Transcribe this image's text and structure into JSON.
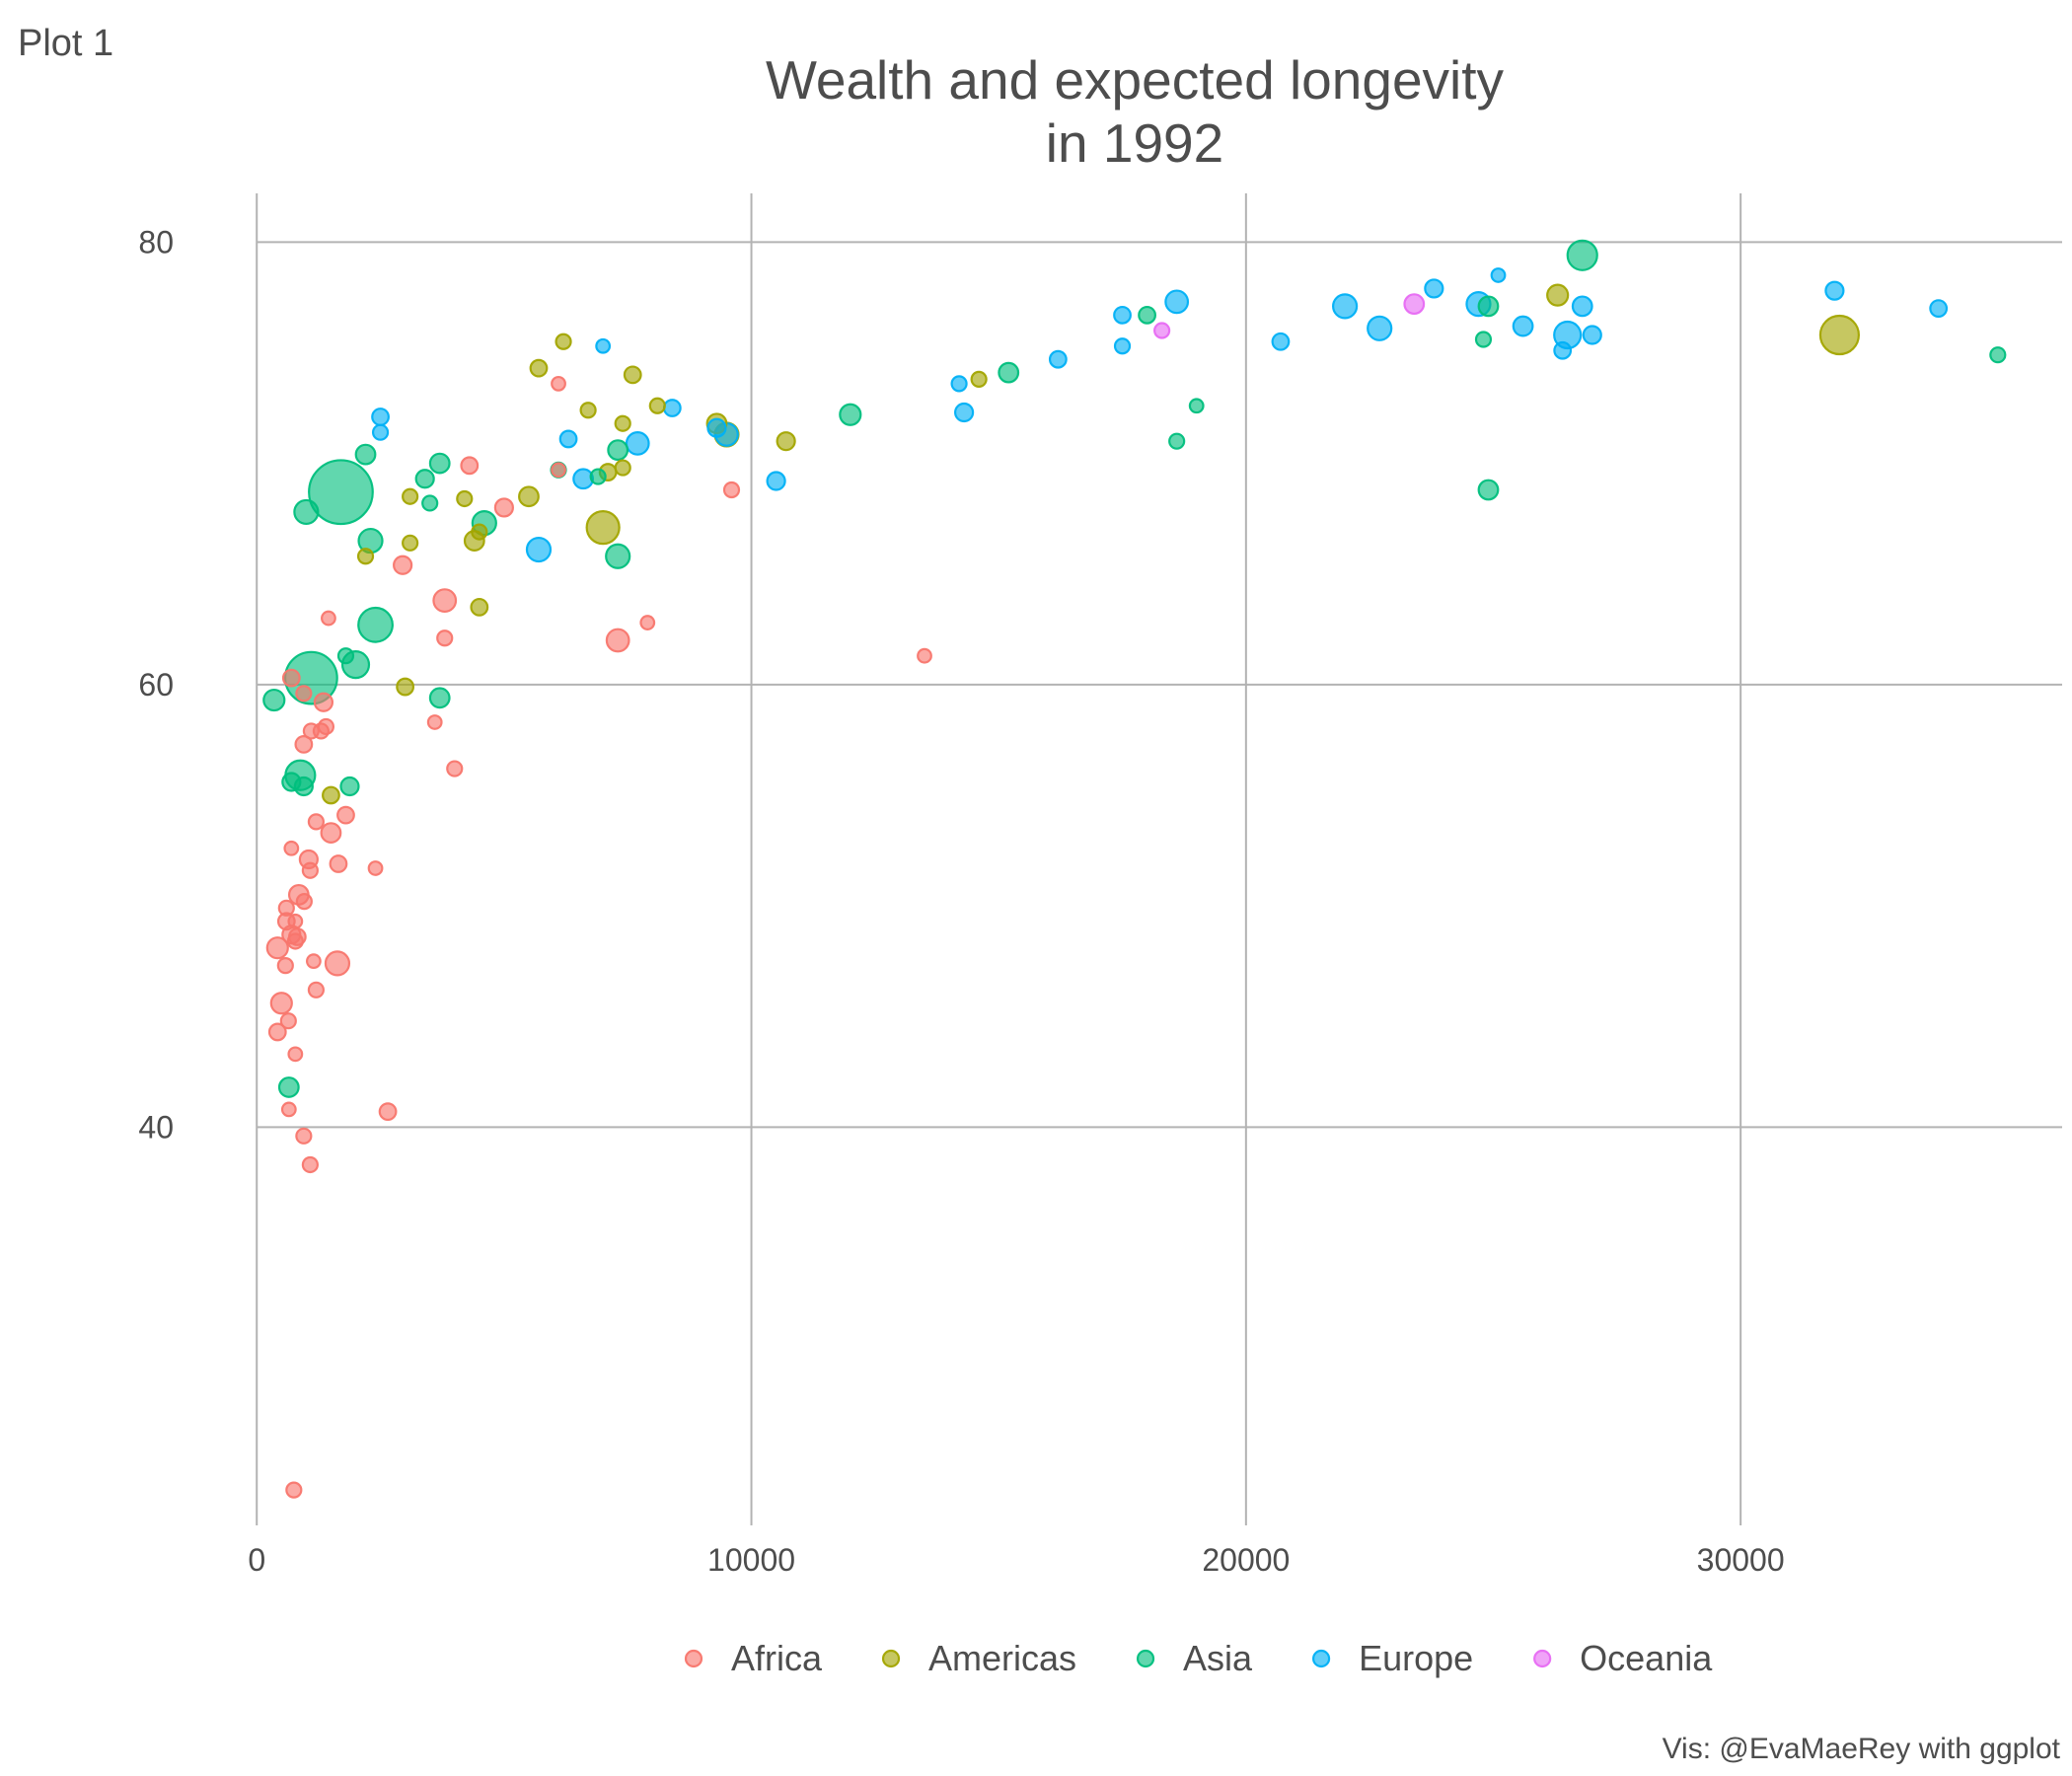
{
  "plot_tag": "Plot 1",
  "caption": "Vis: @EvaMaeRey with ggplot",
  "chart_data": {
    "type": "scatter",
    "title": "Wealth and expected longevity\nin 1992",
    "title_lines": [
      "Wealth and expected longevity",
      "in 1992"
    ],
    "xlabel": "",
    "ylabel": "",
    "xlim": [
      -1800,
      36500
    ],
    "ylim": [
      22,
      82.2
    ],
    "x_ticks": [
      0,
      10000,
      20000,
      30000
    ],
    "x_tick_labels": [
      "0",
      "10000",
      "20000",
      "30000"
    ],
    "y_ticks": [
      40,
      60,
      80
    ],
    "y_tick_labels": [
      "40",
      "60",
      "80"
    ],
    "grid": true,
    "grid_axes": "major only",
    "legend_position": "bottom",
    "point_size_scale": "population (sqrt area)",
    "colors": {
      "Africa": "#F8766D",
      "Americas": "#A3A500",
      "Asia": "#00BF7D",
      "Europe": "#00B0F6",
      "Oceania": "#E76BF3"
    },
    "legend": [
      "Africa",
      "Americas",
      "Asia",
      "Europe",
      "Oceania"
    ],
    "series": [
      {
        "name": "Africa",
        "color": "#F8766D",
        "points": [
          [
            700,
            60.3,
            1.1
          ],
          [
            950,
            59.6,
            1
          ],
          [
            1350,
            59.2,
            1.2
          ],
          [
            1400,
            58.1,
            1
          ],
          [
            1300,
            57.9,
            1
          ],
          [
            1100,
            57.9,
            1
          ],
          [
            950,
            57.3,
            1.1
          ],
          [
            1450,
            63.0,
            0.9
          ],
          [
            2950,
            65.4,
            1.2
          ],
          [
            3800,
            63.8,
            1.5
          ],
          [
            3800,
            62.1,
            1
          ],
          [
            3600,
            58.3,
            0.9
          ],
          [
            4000,
            56.2,
            1
          ],
          [
            4300,
            69.9,
            1.1
          ],
          [
            5000,
            68.0,
            1.2
          ],
          [
            6100,
            69.7,
            0.9
          ],
          [
            6100,
            73.6,
            0.9
          ],
          [
            7300,
            62.0,
            1.5
          ],
          [
            7900,
            62.8,
            0.9
          ],
          [
            9600,
            68.8,
            1
          ],
          [
            13500,
            61.3,
            0.9
          ],
          [
            1200,
            53.8,
            1
          ],
          [
            1500,
            53.3,
            1.3
          ],
          [
            1800,
            54.1,
            1.1
          ],
          [
            700,
            52.6,
            0.9
          ],
          [
            1050,
            52.1,
            1.2
          ],
          [
            1080,
            51.6,
            1
          ],
          [
            1650,
            51.9,
            1.1
          ],
          [
            2400,
            51.7,
            0.9
          ],
          [
            850,
            50.5,
            1.3
          ],
          [
            960,
            50.2,
            1
          ],
          [
            600,
            49.9,
            1
          ],
          [
            600,
            49.3,
            1.1
          ],
          [
            780,
            49.3,
            0.9
          ],
          [
            700,
            48.7,
            1.2
          ],
          [
            820,
            48.6,
            1.1
          ],
          [
            780,
            48.4,
            1
          ],
          [
            420,
            48.1,
            1.4
          ],
          [
            1150,
            47.5,
            0.9
          ],
          [
            580,
            47.3,
            1
          ],
          [
            1630,
            47.4,
            1.6
          ],
          [
            500,
            45.6,
            1.4
          ],
          [
            1200,
            46.2,
            1
          ],
          [
            640,
            44.8,
            1
          ],
          [
            420,
            44.3,
            1.1
          ],
          [
            780,
            43.3,
            0.9
          ],
          [
            650,
            40.8,
            0.9
          ],
          [
            950,
            39.6,
            1
          ],
          [
            1080,
            38.3,
            1
          ],
          [
            2650,
            40.7,
            1.1
          ],
          [
            750,
            23.6,
            1
          ]
        ]
      },
      {
        "name": "Americas",
        "color": "#A3A500",
        "points": [
          [
            6200,
            75.5,
            1
          ],
          [
            5700,
            74.3,
            1.1
          ],
          [
            7600,
            74.0,
            1.1
          ],
          [
            6700,
            72.4,
            1
          ],
          [
            7400,
            71.8,
            1
          ],
          [
            8100,
            72.6,
            1
          ],
          [
            9300,
            71.8,
            1.3
          ],
          [
            9500,
            71.3,
            1.6
          ],
          [
            10700,
            71.0,
            1.2
          ],
          [
            14600,
            73.8,
            1
          ],
          [
            7100,
            69.6,
            1.1
          ],
          [
            7400,
            69.8,
            1
          ],
          [
            4200,
            68.4,
            1
          ],
          [
            5500,
            68.5,
            1.3
          ],
          [
            3100,
            68.5,
            1
          ],
          [
            3100,
            66.4,
            1
          ],
          [
            4400,
            66.5,
            1.3
          ],
          [
            4500,
            66.9,
            1
          ],
          [
            7000,
            67.1,
            2.2
          ],
          [
            2200,
            65.8,
            1
          ],
          [
            4500,
            63.5,
            1.1
          ],
          [
            3000,
            59.9,
            1.1
          ],
          [
            1500,
            55.0,
            1.1
          ],
          [
            26300,
            77.6,
            1.4
          ],
          [
            32000,
            75.8,
            2.6
          ]
        ]
      },
      {
        "name": "Asia",
        "color": "#00BF7D",
        "points": [
          [
            1700,
            68.7,
            4.3
          ],
          [
            1100,
            60.3,
            3.5
          ],
          [
            2400,
            62.7,
            2.3
          ],
          [
            1000,
            67.8,
            1.6
          ],
          [
            2300,
            66.5,
            1.6
          ],
          [
            2000,
            60.9,
            1.8
          ],
          [
            2200,
            70.4,
            1.3
          ],
          [
            3400,
            69.3,
            1.2
          ],
          [
            3700,
            70.0,
            1.3
          ],
          [
            3500,
            68.2,
            1
          ],
          [
            4600,
            67.3,
            1.6
          ],
          [
            6100,
            69.7,
            1
          ],
          [
            6900,
            69.4,
            1
          ],
          [
            7300,
            70.6,
            1.3
          ],
          [
            7300,
            65.8,
            1.6
          ],
          [
            12000,
            72.2,
            1.4
          ],
          [
            15200,
            74.1,
            1.3
          ],
          [
            18000,
            76.7,
            1.1
          ],
          [
            19000,
            72.6,
            0.9
          ],
          [
            18600,
            71.0,
            1
          ],
          [
            24800,
            75.6,
            1
          ],
          [
            24900,
            68.8,
            1.3
          ],
          [
            24900,
            77.1,
            1.3
          ],
          [
            26800,
            79.4,
            2
          ],
          [
            35200,
            74.9,
            1
          ],
          [
            880,
            55.9,
            2
          ],
          [
            700,
            55.6,
            1.2
          ],
          [
            950,
            55.4,
            1.2
          ],
          [
            1880,
            55.4,
            1.2
          ],
          [
            1800,
            61.3,
            1
          ],
          [
            3700,
            59.4,
            1.3
          ],
          [
            350,
            59.3,
            1.4
          ],
          [
            650,
            41.8,
            1.3
          ]
        ]
      },
      {
        "name": "Europe",
        "color": "#00B0F6",
        "points": [
          [
            2500,
            72.1,
            1.1
          ],
          [
            2500,
            71.4,
            1
          ],
          [
            7000,
            75.3,
            0.9
          ],
          [
            6300,
            71.1,
            1.1
          ],
          [
            6600,
            69.3,
            1.3
          ],
          [
            7700,
            70.9,
            1.5
          ],
          [
            8400,
            72.5,
            1.1
          ],
          [
            9300,
            71.6,
            1.2
          ],
          [
            9500,
            71.3,
            1.5
          ],
          [
            5700,
            66.1,
            1.6
          ],
          [
            10500,
            69.2,
            1.2
          ],
          [
            14200,
            73.6,
            1
          ],
          [
            14300,
            72.3,
            1.2
          ],
          [
            16200,
            74.7,
            1.1
          ],
          [
            17500,
            76.7,
            1.1
          ],
          [
            17500,
            75.3,
            1
          ],
          [
            18600,
            77.3,
            1.5
          ],
          [
            20700,
            75.5,
            1.1
          ],
          [
            22000,
            77.1,
            1.6
          ],
          [
            22700,
            76.1,
            1.6
          ],
          [
            23800,
            77.9,
            1.2
          ],
          [
            24700,
            77.2,
            1.6
          ],
          [
            25100,
            78.5,
            0.9
          ],
          [
            25600,
            76.2,
            1.3
          ],
          [
            26500,
            75.8,
            1.8
          ],
          [
            26400,
            75.1,
            1.1
          ],
          [
            26800,
            77.1,
            1.3
          ],
          [
            27000,
            75.8,
            1.2
          ],
          [
            31900,
            77.8,
            1.2
          ],
          [
            34000,
            77.0,
            1.1
          ]
        ]
      },
      {
        "name": "Oceania",
        "color": "#E76BF3",
        "points": [
          [
            18300,
            76.0,
            1
          ],
          [
            23400,
            77.2,
            1.3
          ]
        ]
      }
    ]
  }
}
